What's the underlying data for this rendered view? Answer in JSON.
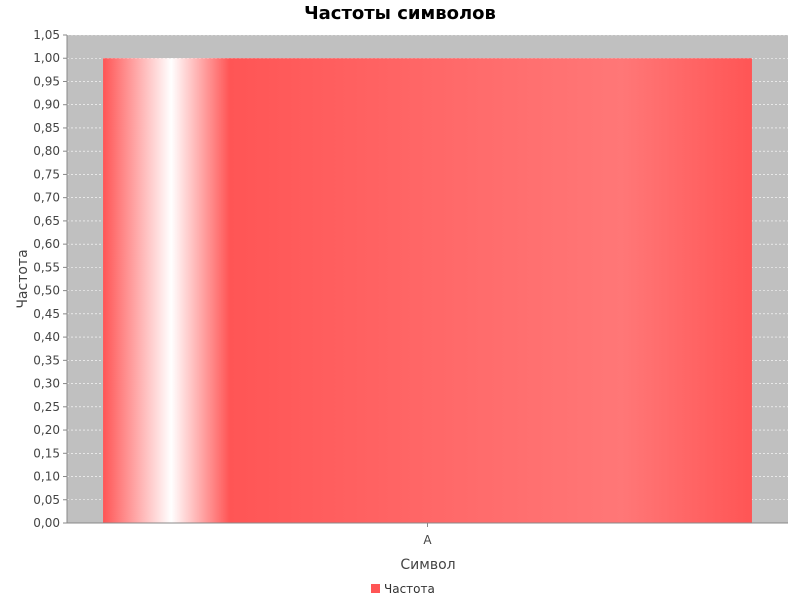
{
  "colors": {
    "plot_background": "#c0c0c0",
    "bar": "#ff5555",
    "bar_highlight": "#ffffff",
    "grid": "#ffffff"
  },
  "chart_data": {
    "type": "bar",
    "title": "Частоты символов",
    "xlabel": "Символ",
    "ylabel": "Частота",
    "categories": [
      "А"
    ],
    "series": [
      {
        "name": "Частота",
        "values": [
          1.0
        ]
      }
    ],
    "ylim": [
      0,
      1.05
    ],
    "y_ticks": [
      "0,00",
      "0,05",
      "0,10",
      "0,15",
      "0,20",
      "0,25",
      "0,30",
      "0,35",
      "0,40",
      "0,45",
      "0,50",
      "0,55",
      "0,60",
      "0,65",
      "0,70",
      "0,75",
      "0,80",
      "0,85",
      "0,90",
      "0,95",
      "1,00",
      "1,05"
    ],
    "grid": true,
    "legend_position": "bottom"
  }
}
